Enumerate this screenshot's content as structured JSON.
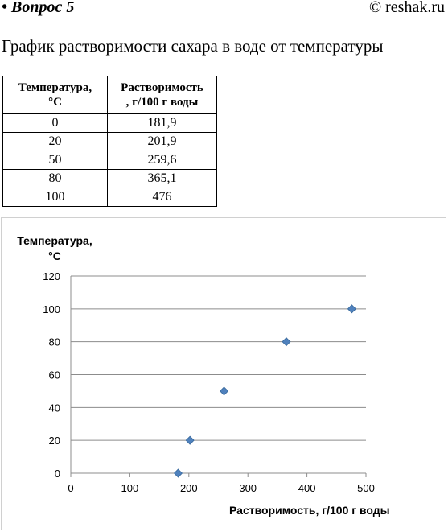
{
  "header": {
    "question": "• Вопрос 5",
    "copyright": "© reshak.ru"
  },
  "subtitle": "График растворимости сахара в воде от температуры",
  "table": {
    "headers": [
      "Температура, °C",
      "Растворимость, г/100 г воды"
    ],
    "rows": [
      [
        "0",
        "181,9"
      ],
      [
        "20",
        "201,9"
      ],
      [
        "50",
        "259,6"
      ],
      [
        "80",
        "365,1"
      ],
      [
        "100",
        "476"
      ]
    ]
  },
  "chart_data": {
    "type": "scatter",
    "title": "",
    "xlabel": "Растворимость, г/100 г воды",
    "ylabel": "Температура, °C",
    "xlim": [
      0,
      500
    ],
    "ylim": [
      0,
      120
    ],
    "xticks": [
      0,
      100,
      200,
      300,
      400,
      500
    ],
    "yticks": [
      0,
      20,
      40,
      60,
      80,
      100,
      120
    ],
    "grid": "horizontal",
    "marker": "diamond",
    "marker_color": "#4f81bd",
    "points": [
      {
        "x": 181.9,
        "y": 0
      },
      {
        "x": 201.9,
        "y": 20
      },
      {
        "x": 259.6,
        "y": 50
      },
      {
        "x": 365.1,
        "y": 80
      },
      {
        "x": 476,
        "y": 100
      }
    ]
  }
}
